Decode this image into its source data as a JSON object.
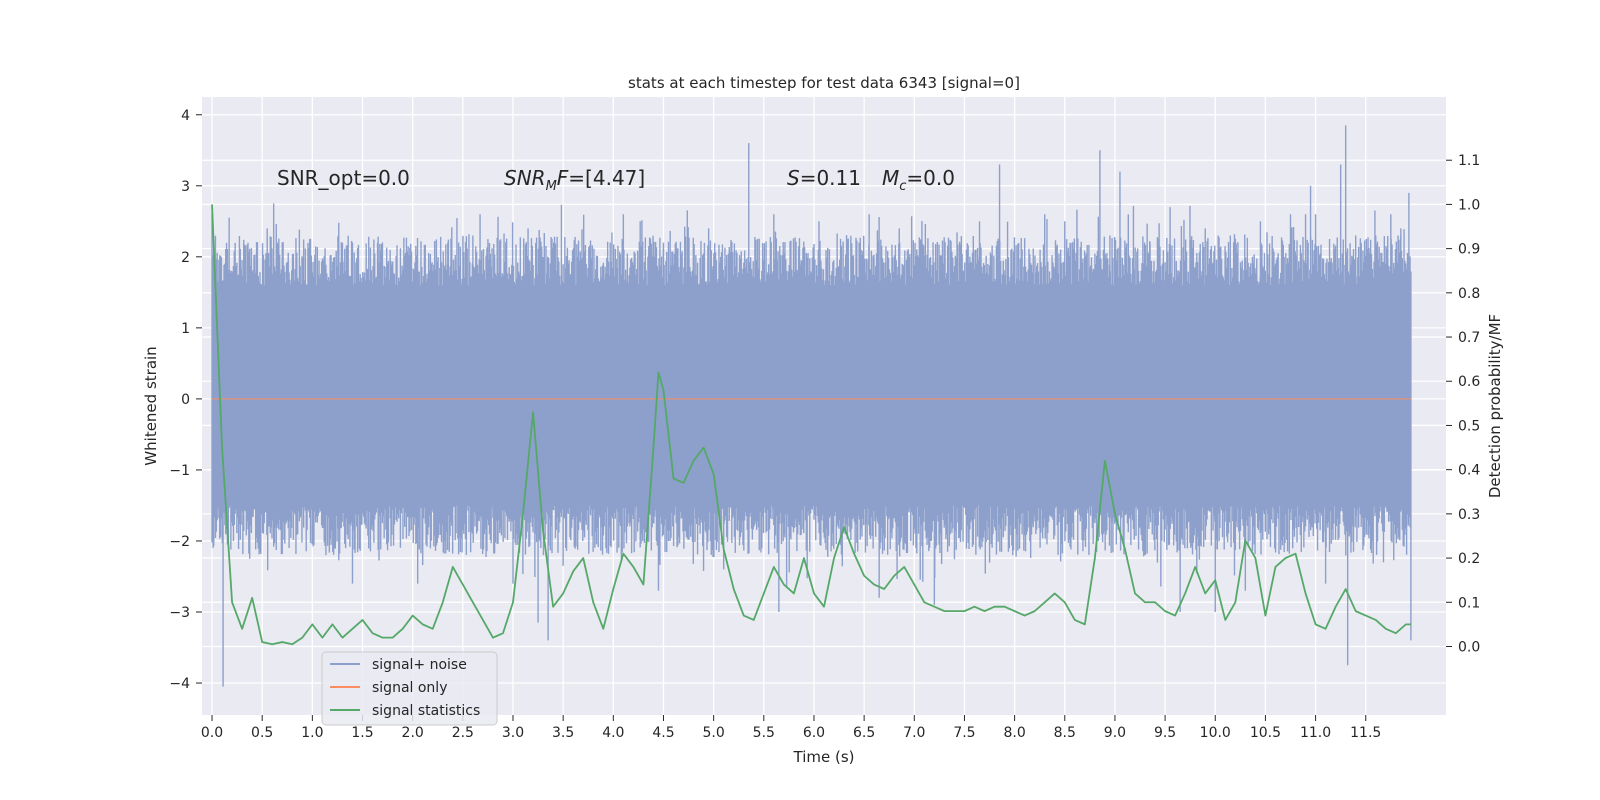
{
  "chart_data": {
    "type": "line",
    "title": "stats at each timestep for test data 6343 [signal=0]",
    "xlabel": "Time (s)",
    "ylabel": "Whitened strain",
    "ylabel_right": "Detection probability/MF",
    "xlim": [
      -0.1,
      12.3
    ],
    "ylim": [
      -4.45,
      4.25
    ],
    "ylim_right": [
      -0.155,
      1.243
    ],
    "x_ticks": [
      0.0,
      0.5,
      1.0,
      1.5,
      2.0,
      2.5,
      3.0,
      3.5,
      4.0,
      4.5,
      5.0,
      5.5,
      6.0,
      6.5,
      7.0,
      7.5,
      8.0,
      8.5,
      9.0,
      9.5,
      10.0,
      10.5,
      11.0,
      11.5
    ],
    "x_tick_labels": [
      "0.0",
      "0.5",
      "1.0",
      "1.5",
      "2.0",
      "2.5",
      "3.0",
      "3.5",
      "4.0",
      "4.5",
      "5.0",
      "5.5",
      "6.0",
      "6.5",
      "7.0",
      "7.5",
      "8.0",
      "8.5",
      "9.0",
      "9.5",
      "10.0",
      "10.5",
      "11.0",
      "11.5"
    ],
    "y_ticks": [
      4,
      3,
      2,
      1,
      0,
      -1,
      -2,
      -3,
      -4
    ],
    "y_tick_labels": [
      "4",
      "3",
      "2",
      "1",
      "0",
      "−1",
      "−2",
      "−3",
      "−4"
    ],
    "y_ticks_right": [
      1.1,
      1.0,
      0.9,
      0.8,
      0.7,
      0.6,
      0.5,
      0.4,
      0.3,
      0.2,
      0.1,
      0.0
    ],
    "y_tick_labels_right": [
      "1.1",
      "1.0",
      "0.9",
      "0.8",
      "0.7",
      "0.6",
      "0.5",
      "0.4",
      "0.3",
      "0.2",
      "0.1",
      "0.0"
    ],
    "grid": true,
    "legend_position": "lower-left",
    "annotations": {
      "snr_opt": "SNR_opt=0.0",
      "snr_mf_prefix": "SNR",
      "snr_mf_sub": "M",
      "snr_mf_f": "F",
      "snr_mf_value": "=[4.47]",
      "s_label": "S",
      "s_value": "=0.11",
      "mc_label": "M",
      "mc_sub": "c",
      "mc_value": "=0.0"
    },
    "series": [
      {
        "name": "signal+ noise",
        "color": "#8da0cb",
        "axis": "left",
        "style": "dense-noise",
        "x_range": [
          0.0,
          11.95
        ],
        "core_band": [
          -1.3,
          1.15
        ],
        "peaks": [
          [
            0.0,
            2.6
          ],
          [
            0.01,
            -2.1
          ],
          [
            0.11,
            -4.05
          ],
          [
            0.55,
            2.4
          ],
          [
            0.65,
            2.2
          ],
          [
            1.05,
            2.05
          ],
          [
            1.3,
            2.2
          ],
          [
            1.4,
            -2.6
          ],
          [
            1.65,
            2.2
          ],
          [
            2.05,
            -2.6
          ],
          [
            2.35,
            2.2
          ],
          [
            2.6,
            2.3
          ],
          [
            2.75,
            2.25
          ],
          [
            3.0,
            -2.6
          ],
          [
            3.15,
            2.4
          ],
          [
            3.25,
            -3.15
          ],
          [
            3.35,
            -3.4
          ],
          [
            3.3,
            2.0
          ],
          [
            4.1,
            2.6
          ],
          [
            4.45,
            -2.7
          ],
          [
            4.5,
            2.2
          ],
          [
            4.95,
            2.4
          ],
          [
            5.1,
            -2.4
          ],
          [
            5.35,
            3.6
          ],
          [
            5.6,
            2.6
          ],
          [
            5.65,
            -3.0
          ],
          [
            6.05,
            2.5
          ],
          [
            6.45,
            2.2
          ],
          [
            6.55,
            2.6
          ],
          [
            6.65,
            -2.8
          ],
          [
            6.85,
            2.4
          ],
          [
            7.2,
            -2.9
          ],
          [
            7.65,
            2.5
          ],
          [
            7.85,
            3.3
          ],
          [
            8.3,
            2.6
          ],
          [
            8.5,
            2.5
          ],
          [
            8.85,
            3.5
          ],
          [
            8.95,
            2.3
          ],
          [
            9.05,
            3.2
          ],
          [
            9.35,
            2.2
          ],
          [
            9.55,
            2.7
          ],
          [
            9.65,
            -3.0
          ],
          [
            9.9,
            2.4
          ],
          [
            10.0,
            -3.0
          ],
          [
            10.15,
            2.3
          ],
          [
            10.3,
            -2.7
          ],
          [
            10.45,
            2.5
          ],
          [
            10.75,
            2.6
          ],
          [
            10.95,
            3.0
          ],
          [
            11.0,
            2.6
          ],
          [
            11.1,
            -2.6
          ],
          [
            11.25,
            3.3
          ],
          [
            11.3,
            3.85
          ],
          [
            11.32,
            -3.75
          ],
          [
            11.4,
            2.3
          ],
          [
            11.6,
            2.3
          ],
          [
            11.75,
            2.6
          ],
          [
            11.85,
            2.4
          ],
          [
            11.93,
            2.9
          ],
          [
            11.95,
            -3.4
          ]
        ]
      },
      {
        "name": "signal only",
        "color": "#fc8d62",
        "axis": "left",
        "style": "line",
        "x": [
          0.0,
          11.95
        ],
        "y": [
          0.0,
          0.0
        ]
      },
      {
        "name": "signal statistics",
        "color": "#55a868",
        "axis": "right",
        "style": "line",
        "x": [
          0.0,
          0.1,
          0.2,
          0.3,
          0.4,
          0.5,
          0.6,
          0.7,
          0.8,
          0.9,
          1.0,
          1.1,
          1.2,
          1.3,
          1.4,
          1.5,
          1.6,
          1.7,
          1.8,
          1.9,
          2.0,
          2.1,
          2.2,
          2.3,
          2.4,
          2.5,
          2.6,
          2.7,
          2.8,
          2.9,
          3.0,
          3.1,
          3.2,
          3.3,
          3.4,
          3.5,
          3.6,
          3.7,
          3.8,
          3.9,
          4.0,
          4.1,
          4.2,
          4.3,
          4.4,
          4.45,
          4.5,
          4.6,
          4.7,
          4.8,
          4.9,
          5.0,
          5.1,
          5.2,
          5.3,
          5.4,
          5.5,
          5.6,
          5.7,
          5.8,
          5.9,
          6.0,
          6.1,
          6.2,
          6.3,
          6.4,
          6.5,
          6.6,
          6.7,
          6.8,
          6.9,
          7.0,
          7.1,
          7.2,
          7.3,
          7.4,
          7.5,
          7.6,
          7.7,
          7.8,
          7.9,
          8.0,
          8.1,
          8.2,
          8.3,
          8.4,
          8.5,
          8.6,
          8.7,
          8.8,
          8.9,
          9.0,
          9.1,
          9.2,
          9.3,
          9.4,
          9.5,
          9.6,
          9.7,
          9.8,
          9.9,
          10.0,
          10.1,
          10.2,
          10.3,
          10.4,
          10.5,
          10.6,
          10.7,
          10.8,
          10.9,
          11.0,
          11.1,
          11.2,
          11.3,
          11.4,
          11.5,
          11.6,
          11.7,
          11.8,
          11.9,
          11.95
        ],
        "y": [
          1.0,
          0.45,
          0.1,
          0.04,
          0.11,
          0.01,
          0.005,
          0.01,
          0.005,
          0.02,
          0.05,
          0.02,
          0.05,
          0.02,
          0.04,
          0.06,
          0.03,
          0.02,
          0.02,
          0.04,
          0.07,
          0.05,
          0.04,
          0.1,
          0.18,
          0.14,
          0.1,
          0.06,
          0.02,
          0.03,
          0.1,
          0.3,
          0.53,
          0.26,
          0.09,
          0.12,
          0.17,
          0.2,
          0.1,
          0.04,
          0.13,
          0.21,
          0.18,
          0.14,
          0.45,
          0.62,
          0.58,
          0.38,
          0.37,
          0.42,
          0.45,
          0.39,
          0.22,
          0.13,
          0.07,
          0.06,
          0.12,
          0.18,
          0.14,
          0.12,
          0.2,
          0.12,
          0.09,
          0.2,
          0.27,
          0.21,
          0.16,
          0.14,
          0.13,
          0.16,
          0.18,
          0.14,
          0.1,
          0.09,
          0.08,
          0.08,
          0.08,
          0.09,
          0.08,
          0.09,
          0.09,
          0.08,
          0.07,
          0.08,
          0.1,
          0.12,
          0.1,
          0.06,
          0.05,
          0.2,
          0.42,
          0.3,
          0.22,
          0.12,
          0.1,
          0.1,
          0.08,
          0.07,
          0.12,
          0.18,
          0.12,
          0.15,
          0.06,
          0.1,
          0.24,
          0.2,
          0.07,
          0.18,
          0.2,
          0.21,
          0.12,
          0.05,
          0.04,
          0.09,
          0.13,
          0.08,
          0.07,
          0.06,
          0.04,
          0.03,
          0.05,
          0.05
        ]
      }
    ]
  }
}
